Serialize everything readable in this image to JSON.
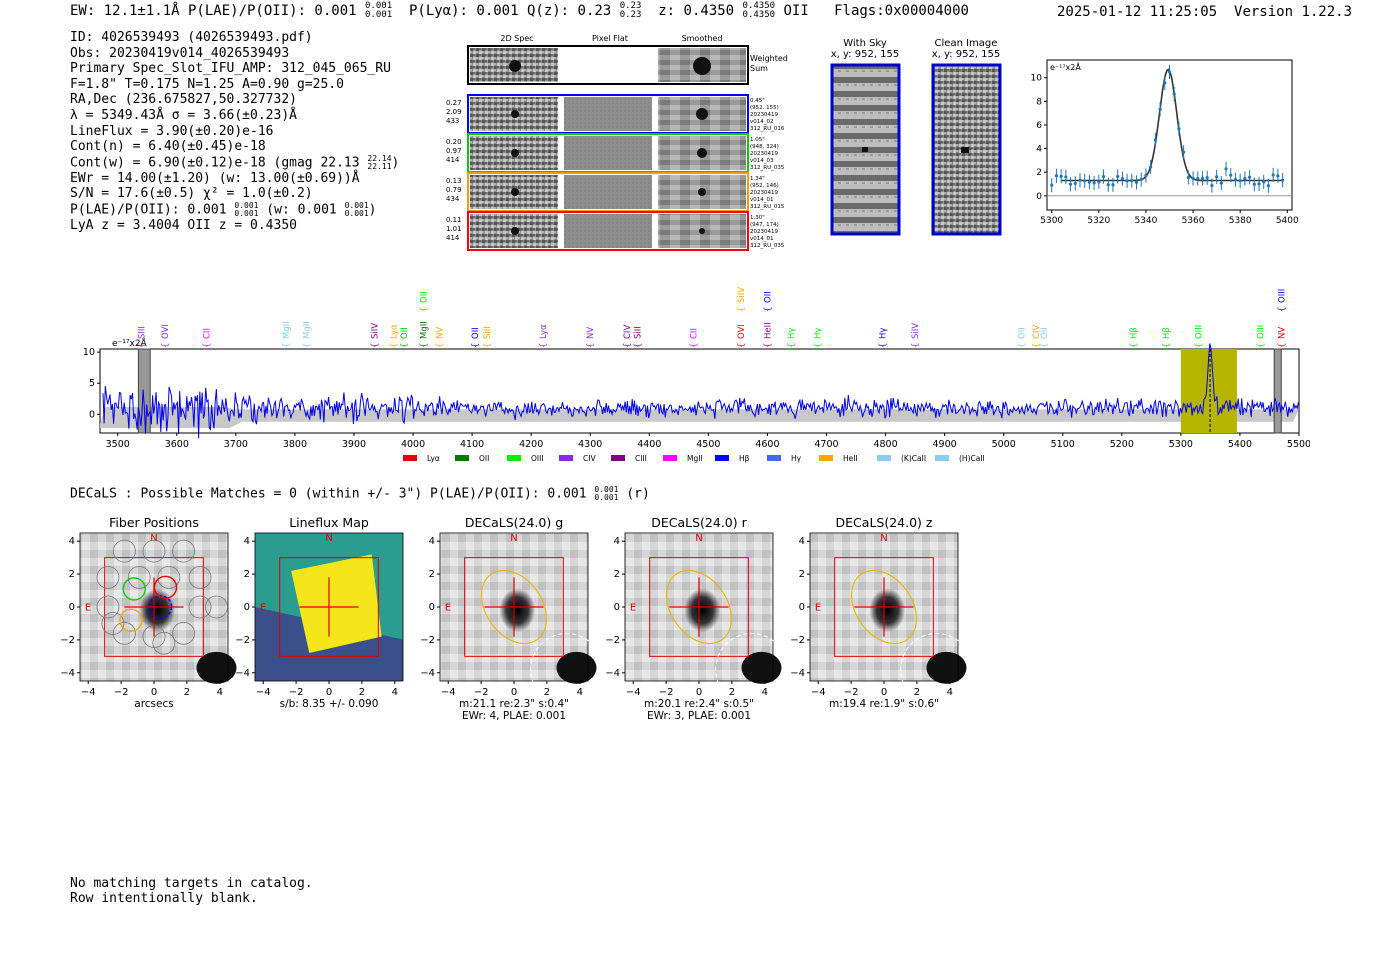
{
  "header": {
    "left": "EW: 12.1±1.1Å  P(LAE)/P(OII): 0.001",
    "left_sup1": "0.001",
    "left_sub1": "0.001",
    "lya": "P(Lyα): 0.001  Q(z): 0.23",
    "qz_sup": "0.23",
    "qz_sub": "0.23",
    "z": "z: 0.4350",
    "z_sup": "0.4350",
    "z_sub": "0.4350",
    "z_line": "OII",
    "flags": "Flags:0x00004000",
    "datetime": "2025-01-12 11:25:05",
    "version": "Version 1.22.3"
  },
  "info_lines": [
    "ID: 4026539493 (4026539493.pdf)",
    "Obs: 20230419v014_4026539493",
    "Primary Spec_Slot_IFU_AMP: 312_045_065_RU",
    "F=1.8\"  T=0.175  N=1.25  A=0.90  g=25.0",
    "RA,Dec (236.675827,50.327732)",
    "λ = 5349.43Å  σ = 3.66(±0.23)Å",
    "LineFlux = 3.90(±0.20)e-16",
    "Cont(n) = 6.40(±0.45)e-18",
    "Cont(w) = 6.90(±0.12)e-18 (gmag 22.13",
    "EWr = 14.00(±1.20) (w: 13.00(±0.69))Å",
    "S/N = 17.6(±0.5)  χ² = 1.0(±0.2)",
    "P(LAE)/P(OII): 0.001",
    "LyA z = 3.4004  OII z = 0.4350"
  ],
  "info_extra": {
    "gmag_sup": "22.14",
    "gmag_sub": "22.11",
    "plae_frac_sup": "0.001",
    "plae_frac_sub": "0.001",
    "plae_w": "(w: 0.001",
    "plae_w_sup": "0.001",
    "plae_w_sub": "0.001"
  },
  "cutouts": {
    "col_titles": [
      "2D Spec",
      "Pixel Flat",
      "Smoothed"
    ],
    "weighted_sum": "Weighted\nSum",
    "fibers": [
      {
        "vals": [
          "0.27",
          "2.09",
          "433"
        ],
        "right": [
          "0.45\"",
          "(952, 155)",
          "20230419",
          "v014_02",
          "312_RU_016"
        ],
        "color": "#0000ff"
      },
      {
        "vals": [
          "0.20",
          "0.97",
          "414"
        ],
        "right": [
          "1.05\"",
          "(948, 324)",
          "20230419",
          "v014_03",
          "312_RU_035"
        ],
        "color": "#00cc00"
      },
      {
        "vals": [
          "0.13",
          "0.79",
          "434"
        ],
        "right": [
          "1.34\"",
          "(952, 146)",
          "20230419",
          "v014_01",
          "312_RU_015"
        ],
        "color": "#ff9900"
      },
      {
        "vals": [
          "0.11",
          "1.01",
          "414"
        ],
        "right": [
          "1.30\"",
          "(947, 174)",
          "20230419",
          "v014_01",
          "312_RU_035"
        ],
        "color": "#ff0000"
      }
    ]
  },
  "ccd": {
    "with_sky_title": "With Sky",
    "clean_title": "Clean Image",
    "coords": "x, y: 952, 155"
  },
  "zoom_chart": {
    "type": "line",
    "unit_label": "e⁻¹⁷x2Å",
    "xlim": [
      5298,
      5402
    ],
    "ylim": [
      -1.2,
      11.5
    ],
    "xticks": [
      5300,
      5320,
      5340,
      5360,
      5380,
      5400
    ],
    "yticks": [
      0,
      2,
      4,
      6,
      8,
      10
    ],
    "model": {
      "amp": 9.4,
      "center": 5349.43,
      "sigma": 3.66,
      "base": 1.3
    }
  },
  "full_spectrum": {
    "type": "line",
    "unit_label": "e⁻¹⁷x2Å",
    "xlim": [
      3470,
      5500
    ],
    "ylim": [
      -3,
      10.5
    ],
    "xticks": [
      3500,
      3600,
      3700,
      3800,
      3900,
      4000,
      4100,
      4200,
      4300,
      4400,
      4500,
      4600,
      4700,
      4800,
      4900,
      5000,
      5100,
      5200,
      5300,
      5400,
      5500
    ],
    "yticks": [
      0,
      5,
      10
    ],
    "highlight": [
      5300,
      5395
    ],
    "peak": 5349.43,
    "legend": [
      {
        "name": "Lyα",
        "color": "#e60000"
      },
      {
        "name": "OII",
        "color": "#007a00"
      },
      {
        "name": "OIII",
        "color": "#00ee00"
      },
      {
        "name": "CIV",
        "color": "#8a2be2"
      },
      {
        "name": "CIII",
        "color": "#800080"
      },
      {
        "name": "MgII",
        "color": "#ff00ff"
      },
      {
        "name": "Hβ",
        "color": "#0000ff"
      },
      {
        "name": "Hγ",
        "color": "#4169e1"
      },
      {
        "name": "HeII",
        "color": "#ffa500"
      },
      {
        "name": "(K)CaII",
        "color": "#87ceeb"
      },
      {
        "name": "(H)CaII",
        "color": "#87ceeb"
      }
    ],
    "lines_top": [
      {
        "name": "SIII",
        "x": 3540,
        "color": "#8a2be2"
      },
      {
        "name": "OVI",
        "x": 3580,
        "color": "#8a2be2"
      },
      {
        "name": "CII",
        "x": 3650,
        "color": "#ff00ff"
      },
      {
        "name": "MgII",
        "x": 3785,
        "color": "#87ceeb"
      },
      {
        "name": "MgII",
        "x": 3820,
        "color": "#87ceeb"
      },
      {
        "name": "SiIV",
        "x": 3935,
        "color": "#800080"
      },
      {
        "name": "Lyα",
        "x": 3967,
        "color": "#ffa500"
      },
      {
        "name": "OII",
        "x": 3985,
        "color": "#00cc00"
      },
      {
        "name": "MgII",
        "x": 4018,
        "color": "#007a00"
      },
      {
        "name": "NV",
        "x": 4045,
        "color": "#ffa500"
      },
      {
        "name": "OII",
        "x": 4105,
        "color": "#0000ff"
      },
      {
        "name": "SiII",
        "x": 4125,
        "color": "#ffa500"
      },
      {
        "name": "Lyα",
        "x": 4220,
        "color": "#8a2be2"
      },
      {
        "name": "NV",
        "x": 4300,
        "color": "#8a2be2"
      },
      {
        "name": "CIV",
        "x": 4362,
        "color": "#800080"
      },
      {
        "name": "SiII",
        "x": 4380,
        "color": "#800080"
      },
      {
        "name": "CII",
        "x": 4475,
        "color": "#ff00ff"
      },
      {
        "name": "OVI",
        "x": 4555,
        "color": "#e60000"
      },
      {
        "name": "HeII",
        "x": 4600,
        "color": "#800080"
      },
      {
        "name": "Hγ",
        "x": 4640,
        "color": "#00ee00"
      },
      {
        "name": "Hγ",
        "x": 4685,
        "color": "#00ee00"
      },
      {
        "name": "Hγ",
        "x": 4795,
        "color": "#0000ff"
      },
      {
        "name": "SiIV",
        "x": 4850,
        "color": "#8a2be2"
      },
      {
        "name": "OII",
        "x": 5030,
        "color": "#87ceeb"
      },
      {
        "name": "CIV",
        "x": 5055,
        "color": "#ffa500"
      },
      {
        "name": "OII",
        "x": 5068,
        "color": "#87ceeb"
      },
      {
        "name": "Hβ",
        "x": 5220,
        "color": "#00ee00"
      },
      {
        "name": "Hβ",
        "x": 5275,
        "color": "#00ee00"
      },
      {
        "name": "OIII",
        "x": 5330,
        "color": "#00ee00"
      },
      {
        "name": "OIII",
        "x": 5435,
        "color": "#00ee00"
      },
      {
        "name": "NV",
        "x": 5470,
        "color": "#e60000"
      }
    ],
    "lines_high": [
      {
        "name": "OII",
        "x": 4018,
        "color": "#00ee00"
      },
      {
        "name": "SiIV",
        "x": 4555,
        "color": "#ffa500"
      },
      {
        "name": "OII",
        "x": 4600,
        "color": "#0000ff"
      },
      {
        "name": "OIII",
        "x": 5470,
        "color": "#0000ff"
      }
    ]
  },
  "decals_header": {
    "text": "DECaLS : Possible Matches = 0 (within +/- 3\")  P(LAE)/P(OII): 0.001",
    "sup": "0.001",
    "sub": "0.001",
    "suffix": "(r)"
  },
  "thumbs": [
    {
      "title": "Fiber Positions",
      "line1": "arcsecs",
      "line2": ""
    },
    {
      "title": "Lineflux Map",
      "line1": "s/b: 8.35 +/- 0.090",
      "line2": ""
    },
    {
      "title": "DECaLS(24.0) g",
      "line1": "m:21.1  re:2.3\"  s:0.4\"",
      "line2": "EWr: 4, PLAE: 0.001"
    },
    {
      "title": "DECaLS(24.0) r",
      "line1": "m:20.1  re:2.4\"  s:0.5\"",
      "line2": "EWr: 3, PLAE: 0.001"
    },
    {
      "title": "DECaLS(24.0) z",
      "line1": "m:19.4  re:1.9\"  s:0.6\"",
      "line2": ""
    }
  ],
  "thumb_axis": {
    "ticks": [
      -4,
      -2,
      0,
      2,
      4
    ],
    "north": "N",
    "east": "E"
  },
  "footer": [
    "No matching targets in catalog.",
    "Row intentionally blank."
  ]
}
